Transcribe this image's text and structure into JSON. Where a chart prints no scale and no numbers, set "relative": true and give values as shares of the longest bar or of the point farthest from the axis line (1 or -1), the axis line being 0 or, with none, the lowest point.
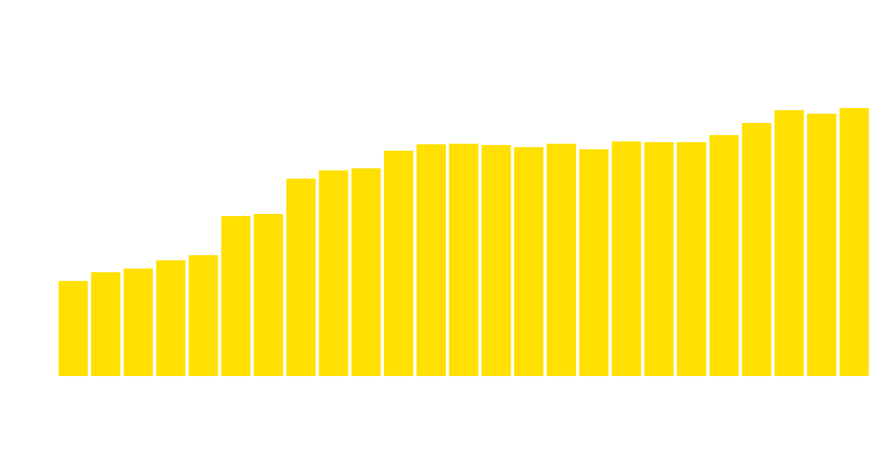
{
  "chart_data": {
    "type": "bar",
    "relative": true,
    "legend": false,
    "grid": false,
    "categories": [
      null,
      null,
      null,
      null,
      null,
      null,
      null,
      null,
      null,
      null,
      null,
      null,
      null,
      null,
      null,
      null,
      null,
      null,
      null,
      null,
      null,
      null,
      null,
      null,
      null
    ],
    "series": [
      {
        "color": "#ffe000",
        "values": [
          0.355,
          0.387,
          0.401,
          0.432,
          0.451,
          0.597,
          0.605,
          0.737,
          0.767,
          0.775,
          0.841,
          0.865,
          0.867,
          0.862,
          0.854,
          0.867,
          0.846,
          0.875,
          0.873,
          0.873,
          0.899,
          0.944,
          0.992,
          0.979,
          1
        ]
      }
    ]
  }
}
